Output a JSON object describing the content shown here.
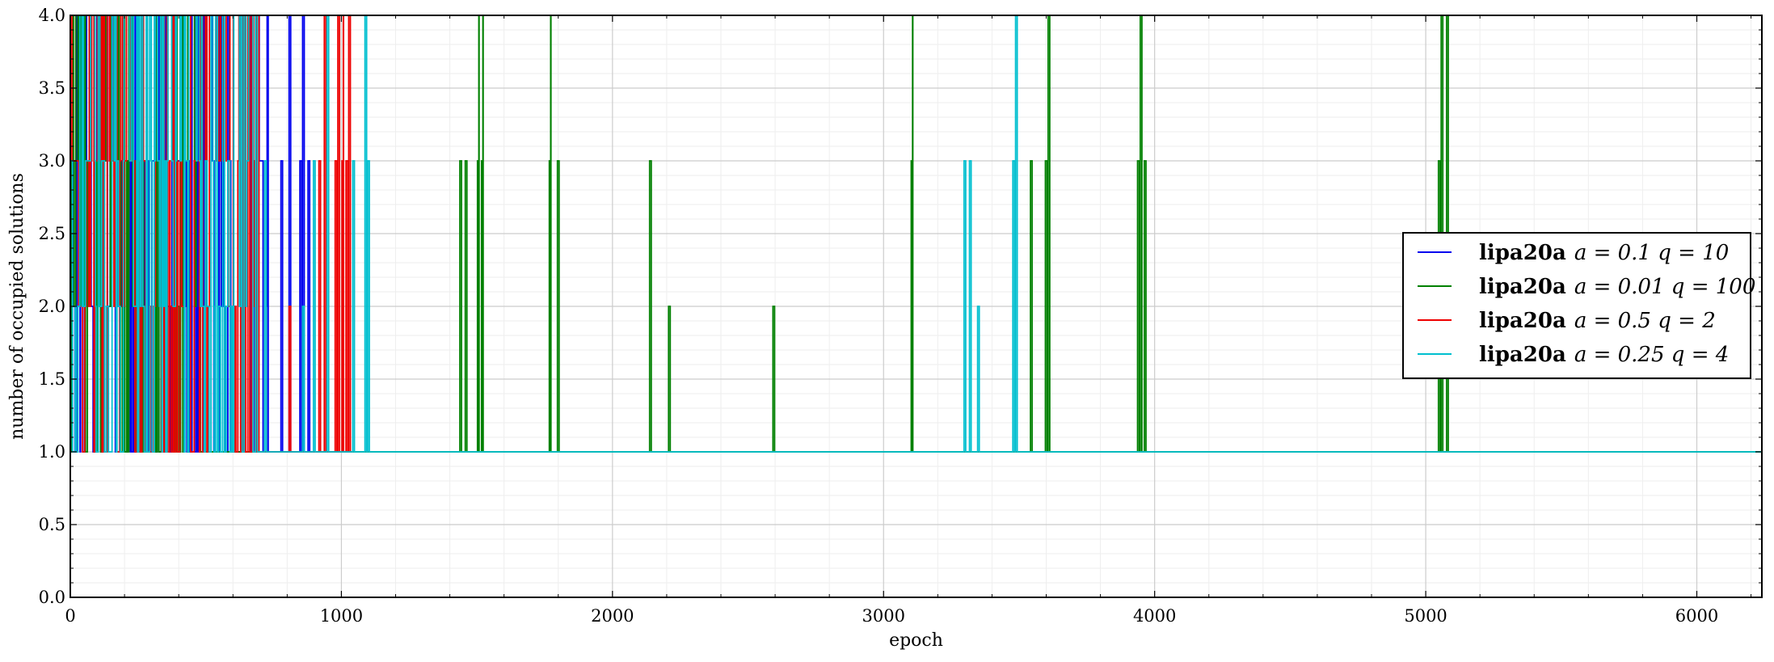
{
  "chart_data": {
    "type": "line",
    "xlabel": "epoch",
    "ylabel": "number of occupied solutions",
    "xlim": [
      0,
      6240
    ],
    "ylim": [
      0,
      4
    ],
    "xticks": [
      0,
      1000,
      2000,
      3000,
      4000,
      5000,
      6000
    ],
    "yticks": [
      0.0,
      0.5,
      1.0,
      1.5,
      2.0,
      2.5,
      3.0,
      3.5,
      4.0
    ],
    "xtick_labels": [
      "0",
      "1000",
      "2000",
      "3000",
      "4000",
      "5000",
      "6000"
    ],
    "ytick_labels": [
      "0.0",
      "0.5",
      "1.0",
      "1.5",
      "2.0",
      "2.5",
      "3.0",
      "3.5",
      "4.0"
    ],
    "grid": true,
    "legend_position": "center-right",
    "series": [
      {
        "name": "lipa20a",
        "label_math": "a = 0.1  q = 10",
        "color": "#0000ee",
        "noise_end": 730,
        "spikes": [
          [
            780,
            3
          ],
          [
            810,
            4
          ],
          [
            850,
            3
          ],
          [
            860,
            4
          ],
          [
            880,
            3
          ]
        ],
        "tail_end": 900
      },
      {
        "name": "lipa20a",
        "label_math": "a = 0.01  q = 100",
        "color": "#008000",
        "noise_end": 480,
        "spikes": [
          [
            1440,
            3
          ],
          [
            1460,
            3
          ],
          [
            1505,
            3
          ],
          [
            1510,
            4
          ],
          [
            1520,
            3
          ],
          [
            1525,
            4
          ],
          [
            1770,
            3
          ],
          [
            1775,
            4
          ],
          [
            1800,
            3
          ],
          [
            2140,
            3
          ],
          [
            2210,
            2
          ],
          [
            2595,
            2
          ],
          [
            3105,
            3
          ],
          [
            3110,
            4
          ],
          [
            3545,
            3
          ],
          [
            3600,
            3
          ],
          [
            3610,
            4
          ],
          [
            3940,
            3
          ],
          [
            3950,
            4
          ],
          [
            3965,
            3
          ],
          [
            5050,
            3
          ],
          [
            5060,
            4
          ],
          [
            5080,
            4
          ]
        ],
        "tail_end": 6240
      },
      {
        "name": "lipa20a",
        "label_math": "a = 0.5  q = 2",
        "color": "#ee0000",
        "noise_end": 700,
        "spikes": [
          [
            810,
            2
          ],
          [
            920,
            3
          ],
          [
            940,
            4
          ],
          [
            980,
            3
          ],
          [
            990,
            4
          ],
          [
            1005,
            3
          ],
          [
            1010,
            4
          ],
          [
            1020,
            3
          ],
          [
            1030,
            4
          ]
        ],
        "tail_end": 1040
      },
      {
        "name": "lipa20a",
        "label_math": "a = 0.25  q = 4",
        "color": "#00bfcf",
        "noise_end": 690,
        "spikes": [
          [
            720,
            3
          ],
          [
            860,
            2
          ],
          [
            900,
            3
          ],
          [
            950,
            4
          ],
          [
            1045,
            3
          ],
          [
            1090,
            4
          ],
          [
            1100,
            3
          ],
          [
            3300,
            3
          ],
          [
            3320,
            3
          ],
          [
            3350,
            2
          ],
          [
            3480,
            3
          ],
          [
            3490,
            4
          ]
        ],
        "tail_end": 6240
      }
    ]
  }
}
